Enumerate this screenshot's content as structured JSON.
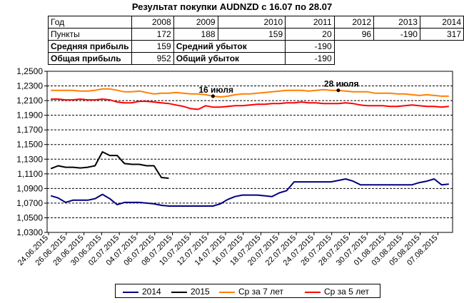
{
  "title": "Результат покупки AUDNZD с 16.07 по 28.07",
  "table": {
    "header_label": "Год",
    "years": [
      "2008",
      "2009",
      "2010",
      "2011",
      "2012",
      "2013",
      "2014"
    ],
    "points_label": "Пункты",
    "points": [
      "172",
      "188",
      "159",
      "20",
      "96",
      "-190",
      "317"
    ],
    "avg_profit_label": "Средняя прибыль",
    "avg_profit": "159",
    "avg_loss_label": "Средний убыток",
    "avg_loss": "-190",
    "total_profit_label": "Общая прибыль",
    "total_profit": "952",
    "total_loss_label": "Общий убыток",
    "total_loss": "-190"
  },
  "chart_data": {
    "type": "line",
    "ylim": [
      1.03,
      1.25
    ],
    "y_ticks": [
      "1,0300",
      "1,0500",
      "1,0700",
      "1,0900",
      "1,1100",
      "1,1300",
      "1,1500",
      "1,1700",
      "1,1900",
      "1,2100",
      "1,2300",
      "1,2500"
    ],
    "x_tick_labels": [
      "24.06.2015",
      "26.06.2015",
      "28.06.2015",
      "30.06.2015",
      "02.07.2015",
      "04.07.2015",
      "06.07.2015",
      "08.07.2015",
      "10.07.2015",
      "12.07.2015",
      "14.07.2015",
      "16.07.2015",
      "18.07.2015",
      "20.07.2015",
      "22.07.2015",
      "24.07.2015",
      "26.07.2015",
      "28.07.2015",
      "30.07.2015",
      "01.08.2015",
      "03.08.2015",
      "05.08.2015",
      "07.08.2015"
    ],
    "grid": true,
    "legend_position": "bottom",
    "series": [
      {
        "name": "2014",
        "color": "#000080",
        "values": [
          1.08,
          1.077,
          1.071,
          1.074,
          1.074,
          1.074,
          1.076,
          1.082,
          1.076,
          1.068,
          1.071,
          1.071,
          1.071,
          1.07,
          1.069,
          1.067,
          1.066,
          1.066,
          1.066,
          1.066,
          1.066,
          1.066,
          1.066,
          1.069,
          1.075,
          1.079,
          1.081,
          1.081,
          1.081,
          1.08,
          1.079,
          1.084,
          1.087,
          1.099,
          1.099,
          1.099,
          1.099,
          1.099,
          1.099,
          1.101,
          1.103,
          1.1,
          1.095,
          1.095,
          1.095,
          1.095,
          1.095,
          1.095,
          1.095,
          1.095,
          1.098,
          1.1,
          1.103,
          1.095,
          1.096
        ]
      },
      {
        "name": "2015",
        "color": "#000000",
        "values": [
          1.117,
          1.121,
          1.119,
          1.119,
          1.118,
          1.119,
          1.121,
          1.14,
          1.135,
          1.135,
          1.124,
          1.123,
          1.123,
          1.121,
          1.121,
          1.105,
          1.104
        ]
      },
      {
        "name": "Ср за 7 лет",
        "color": "#FF8000",
        "values": [
          1.224,
          1.224,
          1.224,
          1.224,
          1.223,
          1.223,
          1.224,
          1.226,
          1.226,
          1.224,
          1.222,
          1.222,
          1.223,
          1.221,
          1.219,
          1.22,
          1.22,
          1.221,
          1.22,
          1.219,
          1.219,
          1.218,
          1.216,
          1.215,
          1.216,
          1.218,
          1.219,
          1.219,
          1.22,
          1.221,
          1.222,
          1.223,
          1.224,
          1.224,
          1.224,
          1.223,
          1.224,
          1.225,
          1.224,
          1.224,
          1.223,
          1.222,
          1.222,
          1.222,
          1.22,
          1.22,
          1.22,
          1.219,
          1.219,
          1.218,
          1.217,
          1.218,
          1.217,
          1.216,
          1.216
        ]
      },
      {
        "name": "Ср за 5 лет",
        "color": "#FF0000",
        "values": [
          1.212,
          1.212,
          1.211,
          1.211,
          1.212,
          1.211,
          1.211,
          1.212,
          1.211,
          1.208,
          1.207,
          1.207,
          1.209,
          1.209,
          1.208,
          1.207,
          1.206,
          1.204,
          1.202,
          1.199,
          1.198,
          1.203,
          1.201,
          1.201,
          1.202,
          1.203,
          1.203,
          1.204,
          1.205,
          1.205,
          1.206,
          1.206,
          1.207,
          1.207,
          1.208,
          1.207,
          1.207,
          1.206,
          1.206,
          1.206,
          1.207,
          1.206,
          1.204,
          1.203,
          1.203,
          1.203,
          1.202,
          1.202,
          1.203,
          1.204,
          1.203,
          1.202,
          1.202,
          1.201,
          1.202
        ]
      }
    ],
    "annotations": [
      {
        "text": "16 июля",
        "x_index": 22,
        "y": 1.216
      },
      {
        "text": "28 июля",
        "x_index": 39,
        "y": 1.224
      }
    ]
  }
}
